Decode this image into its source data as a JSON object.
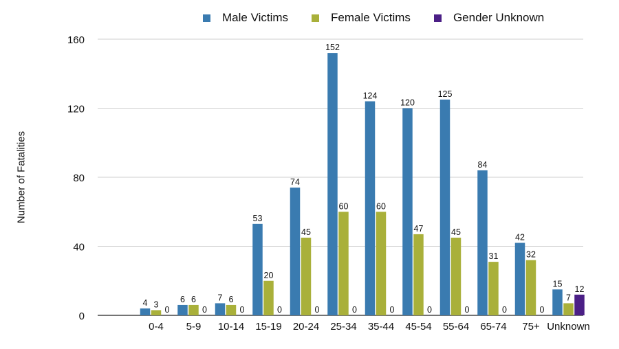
{
  "chart_data": {
    "type": "bar",
    "title": "",
    "xlabel": "",
    "ylabel": "Number of Fatalities",
    "ylim": [
      0,
      160
    ],
    "yticks": [
      0,
      40,
      80,
      120,
      160
    ],
    "grid": true,
    "legend_position": "top",
    "categories": [
      "0-4",
      "5-9",
      "10-14",
      "15-19",
      "20-24",
      "25-34",
      "35-44",
      "45-54",
      "55-64",
      "65-74",
      "75+",
      "Unknown"
    ],
    "series": [
      {
        "name": "Male Victims",
        "color": "#3a7bb0",
        "values": [
          4,
          6,
          7,
          53,
          74,
          152,
          124,
          120,
          125,
          84,
          42,
          15
        ]
      },
      {
        "name": "Female Victims",
        "color": "#a9b03a",
        "values": [
          3,
          6,
          6,
          20,
          45,
          60,
          60,
          47,
          45,
          31,
          32,
          7
        ]
      },
      {
        "name": "Gender Unknown",
        "color": "#4b1f86",
        "values": [
          0,
          0,
          0,
          0,
          0,
          0,
          0,
          0,
          0,
          0,
          0,
          12
        ]
      }
    ]
  }
}
